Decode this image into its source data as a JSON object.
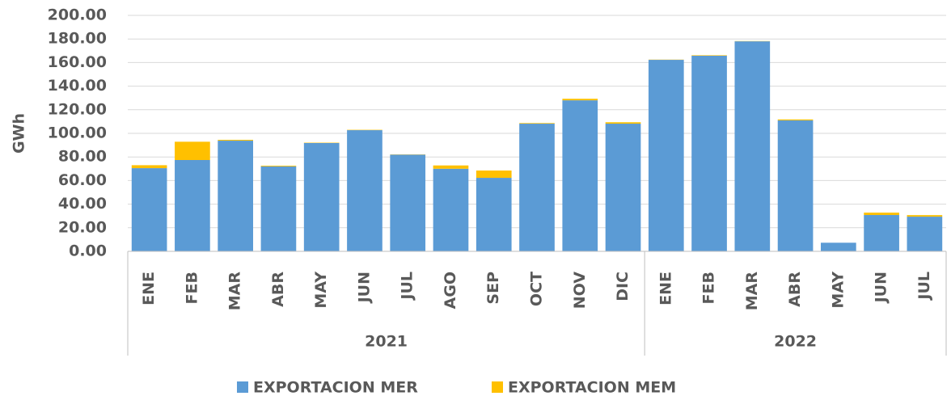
{
  "chart_data": {
    "type": "stacked_bar",
    "y_label": "GWh",
    "groups": [
      {
        "label": "2021",
        "categories": [
          "ENE",
          "FEB",
          "MAR",
          "ABR",
          "MAY",
          "JUN",
          "JUL",
          "AGO",
          "SEP",
          "OCT",
          "NOV",
          "DIC"
        ]
      },
      {
        "label": "2022",
        "categories": [
          "ENE",
          "FEB",
          "MAR",
          "ABR",
          "MAY",
          "JUN",
          "JUL"
        ]
      }
    ],
    "series": [
      {
        "name": "EXPORTACION MER",
        "color": "#5b9bd5",
        "values": [
          70.5,
          77.4,
          93.8,
          72,
          91.8,
          102.7,
          82,
          70,
          62.3,
          108.2,
          128,
          108.2,
          162.3,
          165.8,
          178,
          111,
          7.3,
          30.8,
          29.4
        ]
      },
      {
        "name": "EXPORTACION MEM",
        "color": "#ffc000",
        "values": [
          2.5,
          15.5,
          0.7,
          0.6,
          0.3,
          0.3,
          0.2,
          2.8,
          6.2,
          0.5,
          1.3,
          1.2,
          0.2,
          0.4,
          0.2,
          0.8,
          0,
          2,
          1.3
        ]
      }
    ],
    "ylim": [
      0,
      200
    ],
    "yticks": [
      {
        "value": 0,
        "label": "0.00"
      },
      {
        "value": 20,
        "label": "20.00"
      },
      {
        "value": 40,
        "label": "40.00"
      },
      {
        "value": 60,
        "label": "60.00"
      },
      {
        "value": 80,
        "label": "80.00"
      },
      {
        "value": 100,
        "label": "100.00"
      },
      {
        "value": 120,
        "label": "120.00"
      },
      {
        "value": 140,
        "label": "140.00"
      },
      {
        "value": 160,
        "label": "160.00"
      },
      {
        "value": 180,
        "label": "180.00"
      },
      {
        "value": 200,
        "label": "200.00"
      }
    ],
    "grid": true
  }
}
